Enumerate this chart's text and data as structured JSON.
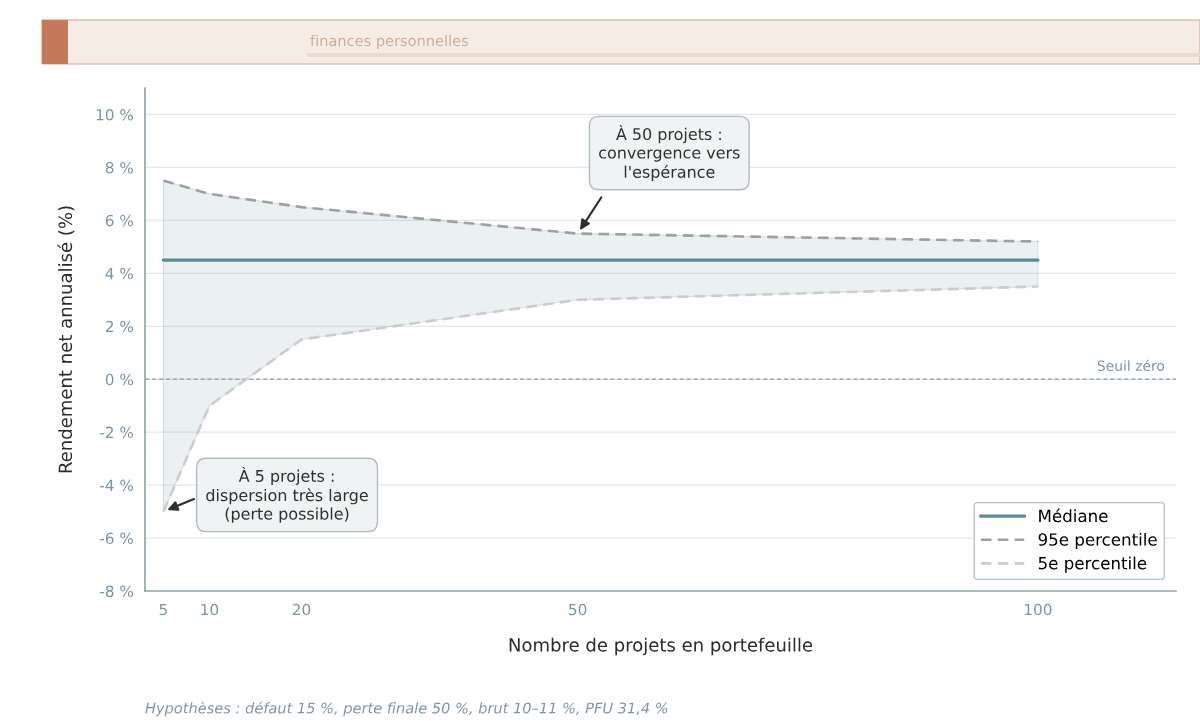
{
  "chart_data": {
    "type": "line",
    "xlabel": "Nombre de projets en portefeuille",
    "ylabel": "Rendement net annualisé (%)",
    "x": [
      5,
      10,
      20,
      50,
      100
    ],
    "series": [
      {
        "name": "Médiane",
        "color": "#5b8a9a",
        "line_style": "solid",
        "values": [
          4.5,
          4.5,
          4.5,
          4.5,
          4.5
        ],
        "lower": [
          -5.0,
          -1.0,
          1.5,
          3.0,
          3.5
        ],
        "upper": [
          7.5,
          7.0,
          6.5,
          5.5,
          5.2
        ]
      },
      {
        "name": "95e percentile",
        "color": "#a0a0a0",
        "line_style": "dashed",
        "values": [
          7.5,
          7.0,
          6.5,
          5.5,
          5.2
        ]
      },
      {
        "name": "5e percentile",
        "color": "#cccccc",
        "line_style": "dashed",
        "values": [
          -5.0,
          -1.0,
          1.5,
          3.0,
          3.5
        ]
      }
    ],
    "xlim": [
      3,
      115
    ],
    "xticks": [
      5,
      10,
      20,
      50,
      100
    ],
    "ylim": [
      -8,
      11
    ],
    "yticks": [
      {
        "value": -8,
        "label": "-8 %"
      },
      {
        "value": -6,
        "label": "-6 %"
      },
      {
        "value": -4,
        "label": "-4 %"
      },
      {
        "value": -2,
        "label": "-2 %"
      },
      {
        "value": 0,
        "label": "0 %"
      },
      {
        "value": 2,
        "label": "2 %"
      },
      {
        "value": 4,
        "label": "4 %"
      },
      {
        "value": 6,
        "label": "6 %"
      },
      {
        "value": 8,
        "label": "8 %"
      },
      {
        "value": 10,
        "label": "10 %"
      }
    ],
    "grid": "y",
    "legend": "bottom right",
    "ref_lines": [
      {
        "axis": "y",
        "value": 0,
        "label": "Seuil zéro",
        "color": "#9aacb5",
        "line_style": "dashed"
      }
    ],
    "annotations": [
      {
        "text": "À 50 projets :\nconvergence vers\nl'espérance",
        "x": 50,
        "y": 5.5
      },
      {
        "text": "À 5 projets :\ndispersion très large\n(perte possible)",
        "x": 5,
        "y": -5.0
      },
      "finances personnelles",
      "Hypothèses : défaut 15 %, perte finale 50 %, brut 10–11 %, PFU 31,4 %"
    ]
  }
}
